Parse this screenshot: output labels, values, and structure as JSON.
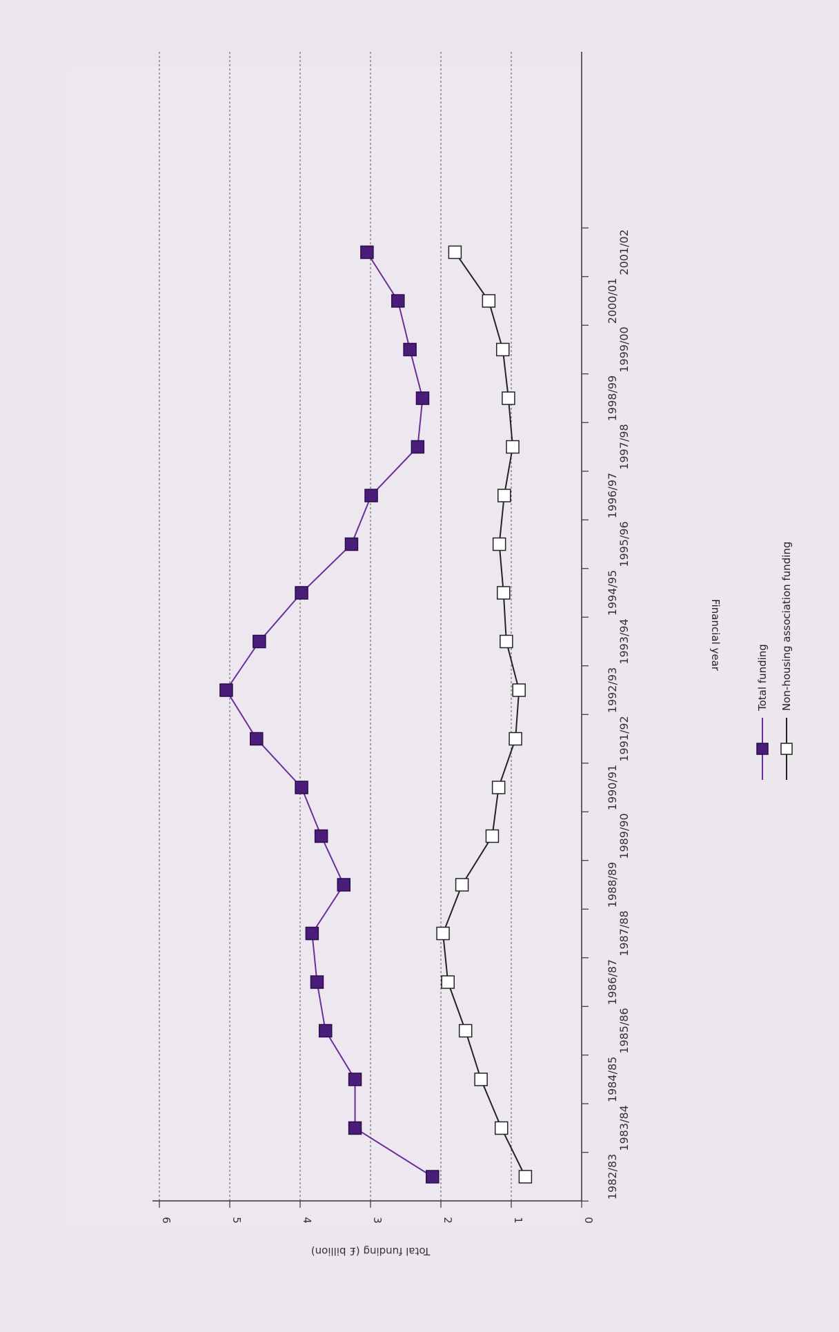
{
  "chart_data": {
    "type": "line",
    "orientation": "rotated-90-clockwise",
    "ylabel": "Total funding (£ billion)",
    "xlabel": "Financial year",
    "ylim": [
      0,
      6
    ],
    "yticks": [
      "0",
      "1",
      "2",
      "3",
      "4",
      "5",
      "6"
    ],
    "categories": [
      "1982/83",
      "1983/84",
      "1984/85",
      "1985/86",
      "1986/87",
      "1987/88",
      "1988/89",
      "1989/90",
      "1990/91",
      "1991/92",
      "1992/93",
      "1993/94",
      "1994/95",
      "1995/96",
      "1996/97",
      "1997/98",
      "1998/99",
      "1999/00",
      "2000/01",
      "2001/02"
    ],
    "series": [
      {
        "name": "Total funding",
        "marker": "filled-square",
        "color": "#6a2d9c",
        "marker_color": "#4b1d7a",
        "values": [
          2.12,
          3.22,
          3.22,
          3.64,
          3.76,
          3.83,
          3.38,
          3.7,
          3.98,
          4.62,
          5.05,
          4.58,
          3.98,
          3.27,
          2.99,
          2.33,
          2.26,
          2.44,
          2.61,
          3.05
        ]
      },
      {
        "name": "Non-housing association funding",
        "marker": "open-square",
        "color": "#222222",
        "marker_color": "#ffffff",
        "values": [
          0.8,
          1.14,
          1.43,
          1.65,
          1.9,
          1.97,
          1.7,
          1.27,
          1.18,
          0.94,
          0.89,
          1.07,
          1.11,
          1.17,
          1.1,
          0.98,
          1.04,
          1.12,
          1.32,
          1.8
        ]
      }
    ],
    "grid": "dashed horizontal value gridlines",
    "legend_position": "bottom"
  },
  "colors": {
    "background": "#ece7ec",
    "plot_background": "#ede8ef",
    "total": "#6a2d9c",
    "total_marker": "#4b1d7a",
    "nonha": "#222222"
  }
}
